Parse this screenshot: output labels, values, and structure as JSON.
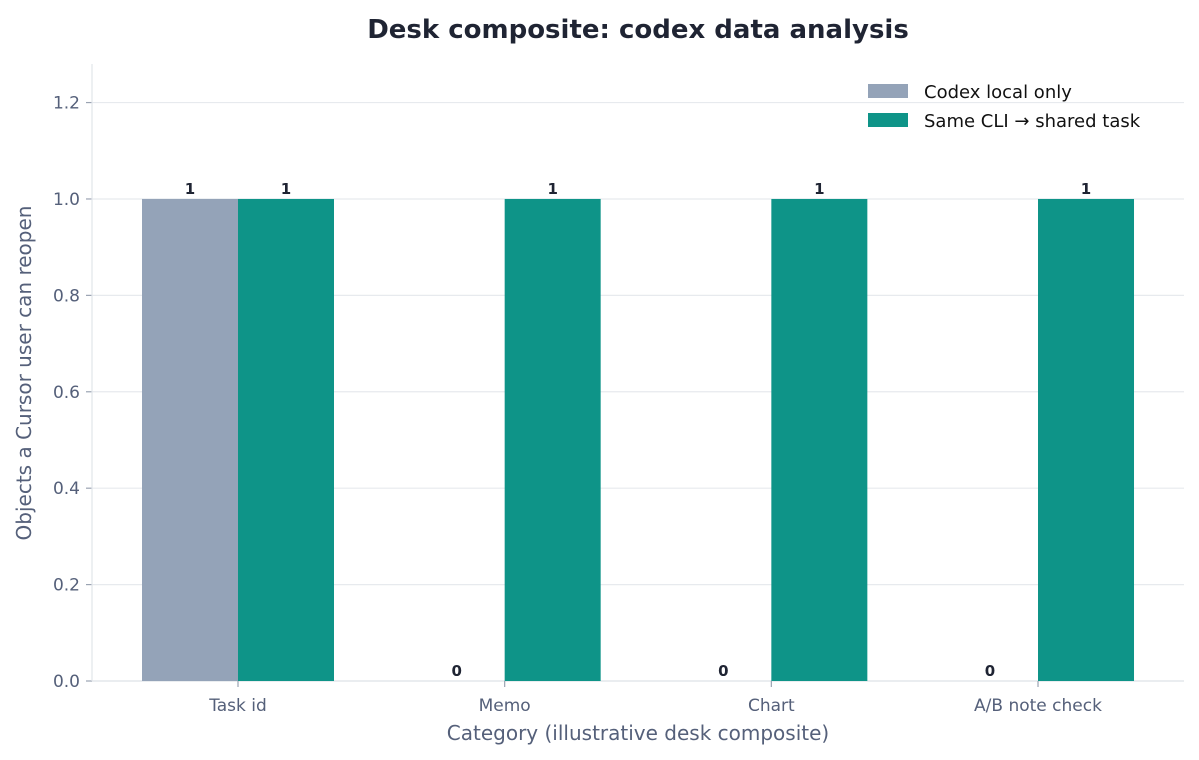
{
  "chart_data": {
    "type": "bar",
    "title": "Desk composite: codex data analysis",
    "xlabel": "Category (illustrative desk composite)",
    "ylabel": "Objects a Cursor user can reopen",
    "categories": [
      "Task id",
      "Memo",
      "Chart",
      "A/B note check"
    ],
    "series": [
      {
        "name": "Codex local only",
        "values": [
          1,
          0,
          0,
          0
        ],
        "color": "#94a3b8"
      },
      {
        "name": "Same CLI → shared task",
        "values": [
          1,
          1,
          1,
          1
        ],
        "color": "#0e9488"
      }
    ],
    "ylim": [
      0,
      1.28
    ],
    "yticks": [
      "0.0",
      "0.2",
      "0.4",
      "0.6",
      "0.8",
      "1.0",
      "1.2"
    ],
    "grid": true,
    "legend": "top-right",
    "data_labels": true
  }
}
